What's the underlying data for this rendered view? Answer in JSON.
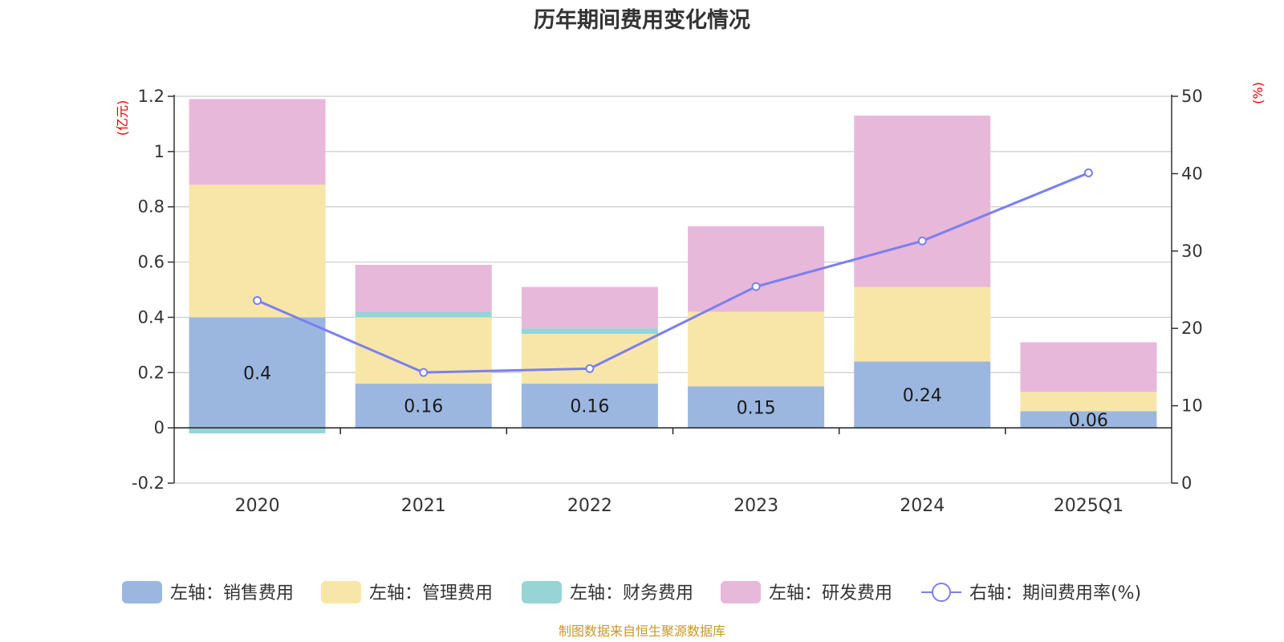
{
  "chart_data": {
    "type": "bar",
    "stacked": true,
    "title": "历年期间费用变化情况",
    "categories": [
      "2020",
      "2021",
      "2022",
      "2023",
      "2024",
      "2025Q1"
    ],
    "left_axis": {
      "unit_label": "(亿元)",
      "ylim": [
        -0.2,
        1.2
      ],
      "ticks": [
        -0.2,
        0,
        0.2,
        0.4,
        0.6,
        0.8,
        1,
        1.2
      ],
      "tick_labels": [
        "-0.2",
        "0",
        "0.2",
        "0.4",
        "0.6",
        "0.8",
        "1",
        "1.2"
      ]
    },
    "right_axis": {
      "unit_label": "(%)",
      "ylim": [
        0,
        50
      ],
      "ticks": [
        0,
        10,
        20,
        30,
        40,
        50
      ],
      "tick_labels": [
        "0",
        "10",
        "20",
        "30",
        "40",
        "50"
      ]
    },
    "series": [
      {
        "name": "左轴：销售费用",
        "axis": "left",
        "color": "#9bb7e0",
        "values": [
          0.4,
          0.16,
          0.16,
          0.15,
          0.24,
          0.06
        ],
        "labels": [
          "0.4",
          "0.16",
          "0.16",
          "0.15",
          "0.24",
          "0.06"
        ]
      },
      {
        "name": "左轴：管理费用",
        "axis": "left",
        "color": "#f8e6a8",
        "values": [
          0.48,
          0.24,
          0.18,
          0.27,
          0.27,
          0.07
        ]
      },
      {
        "name": "左轴：财务费用",
        "axis": "left",
        "color": "#96d4d6",
        "values": [
          -0.02,
          0.02,
          0.02,
          0.0,
          0.0,
          0.0
        ]
      },
      {
        "name": "左轴：研发费用",
        "axis": "left",
        "color": "#e8b8da",
        "values": [
          0.31,
          0.17,
          0.15,
          0.31,
          0.62,
          0.18
        ]
      },
      {
        "name": "右轴：期间费用率(%)",
        "axis": "right",
        "type": "line",
        "color": "#7b7ff0",
        "values": [
          23.6,
          14.3,
          14.8,
          25.4,
          31.3,
          40.1
        ]
      }
    ],
    "grid": true,
    "legend_position": "bottom"
  },
  "source_note": "制图数据来自恒生聚源数据库"
}
